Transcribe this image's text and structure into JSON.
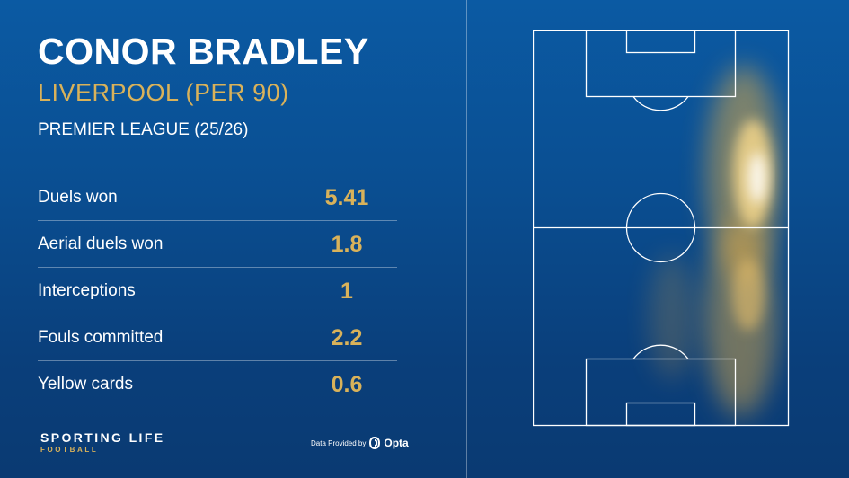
{
  "player_name": "CONOR BRADLEY",
  "team_line": "LIVERPOOL (PER 90)",
  "competition": "PREMIER LEAGUE (25/26)",
  "accent_color": "#d9b25a",
  "background_color": "#0b5aa3",
  "stats": [
    {
      "label": "Duels won",
      "value": "5.41"
    },
    {
      "label": "Aerial duels won",
      "value": "1.8"
    },
    {
      "label": "Interceptions",
      "value": "1"
    },
    {
      "label": "Fouls committed",
      "value": "2.2"
    },
    {
      "label": "Yellow cards",
      "value": "0.6"
    }
  ],
  "brand": {
    "line1": "SPORTING LIFE",
    "line2": "FOOTBALL"
  },
  "credit": {
    "text": "Data Provided by",
    "provider": "Opta",
    "icon": "opta-logo-icon"
  },
  "heatmap": {
    "description_icon": "pitch-heatmap",
    "zone": "right flank"
  }
}
